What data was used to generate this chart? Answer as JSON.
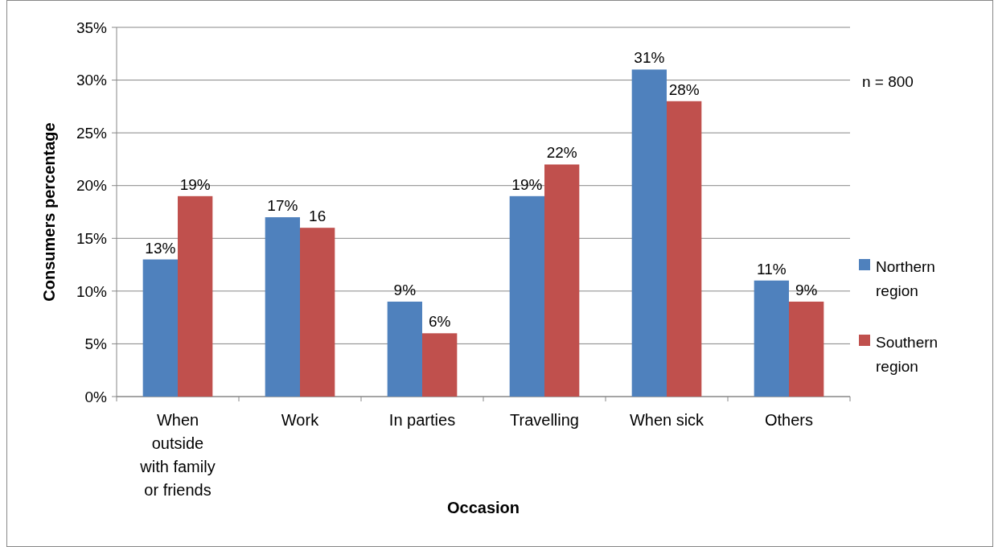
{
  "chart_data": {
    "type": "bar",
    "xlabel": "Occasion",
    "ylabel": "Consumers percentage",
    "categories": [
      "When outside with family or friends",
      "Work",
      "In parties",
      "Travelling",
      "When sick",
      "Others"
    ],
    "series": [
      {
        "name": "Northern region",
        "color": "#4f81bd",
        "values": [
          13,
          17,
          9,
          19,
          31,
          11
        ],
        "value_labels": [
          "13%",
          "17%",
          "9%",
          "19%",
          "31%",
          "11%"
        ]
      },
      {
        "name": "Southern region",
        "color": "#c0504d",
        "values": [
          19,
          16,
          6,
          22,
          28,
          9
        ],
        "value_labels": [
          "19%",
          "16",
          "6%",
          "22%",
          "28%",
          "9%"
        ]
      }
    ],
    "ylim": [
      0,
      35
    ],
    "yticks": [
      {
        "value": 0,
        "label": "0%"
      },
      {
        "value": 5,
        "label": "5%"
      },
      {
        "value": 10,
        "label": "10%"
      },
      {
        "value": 15,
        "label": "15%"
      },
      {
        "value": 20,
        "label": "20%"
      },
      {
        "value": 25,
        "label": "25%"
      },
      {
        "value": 30,
        "label": "30%"
      },
      {
        "value": 35,
        "label": "35%"
      }
    ],
    "grid": "y",
    "legend": "right",
    "annotations": [
      "n = 800"
    ]
  }
}
